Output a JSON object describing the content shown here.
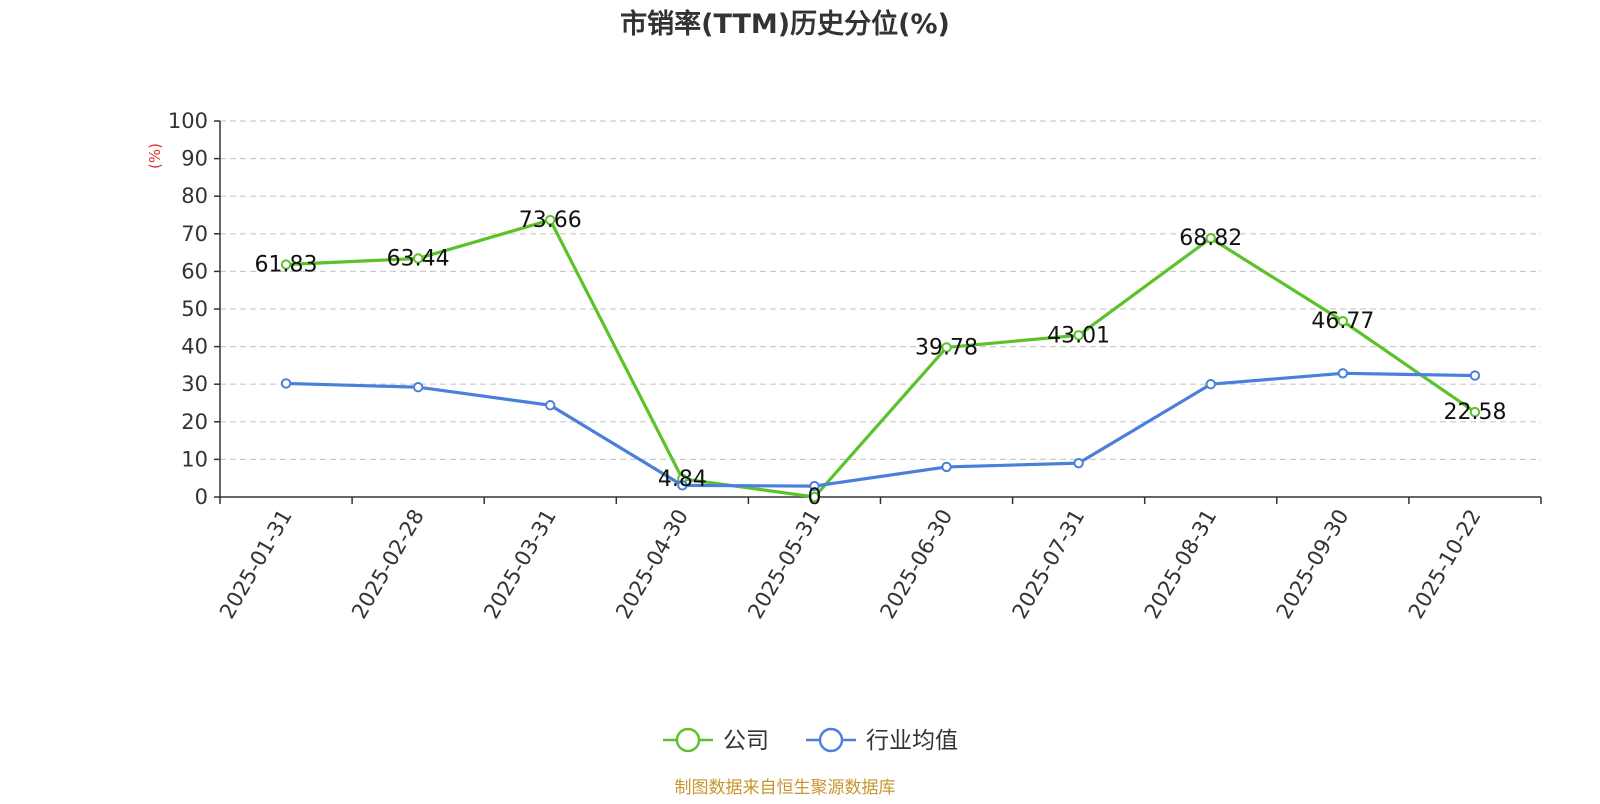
{
  "chart_data": {
    "type": "line",
    "title": "市销率(TTM)历史分位(%)",
    "ylabel": "(%)",
    "ylim": [
      0,
      100
    ],
    "yticks": [
      0,
      10,
      20,
      30,
      40,
      50,
      60,
      70,
      80,
      90,
      100
    ],
    "grid": true,
    "legend_position": "bottom-center",
    "categories": [
      "2025-01-31",
      "2025-02-28",
      "2025-03-31",
      "2025-04-30",
      "2025-05-31",
      "2025-06-30",
      "2025-07-31",
      "2025-08-31",
      "2025-09-30",
      "2025-10-22"
    ],
    "series": [
      {
        "name": "公司",
        "color": "#5cc22a",
        "values": [
          61.83,
          63.44,
          73.66,
          4.84,
          0,
          39.78,
          43.01,
          68.82,
          46.77,
          22.58
        ],
        "labels": [
          "61.83",
          "63.44",
          "73.66",
          "4.84",
          "0",
          "39.78",
          "43.01",
          "68.82",
          "46.77",
          "22.58"
        ],
        "show_labels": true
      },
      {
        "name": "行业均值",
        "color": "#4a7fdc",
        "values": [
          30.2,
          29.2,
          24.4,
          3.1,
          2.9,
          8.0,
          9.0,
          30.0,
          32.9,
          32.3
        ],
        "show_labels": false
      }
    ],
    "source_note": "制图数据来自恒生聚源数据库"
  },
  "colors": {
    "axis": "#333333",
    "grid": "#cccccc",
    "title": "#333333",
    "ylabel": "#e03030",
    "source_note": "#c8962e"
  }
}
